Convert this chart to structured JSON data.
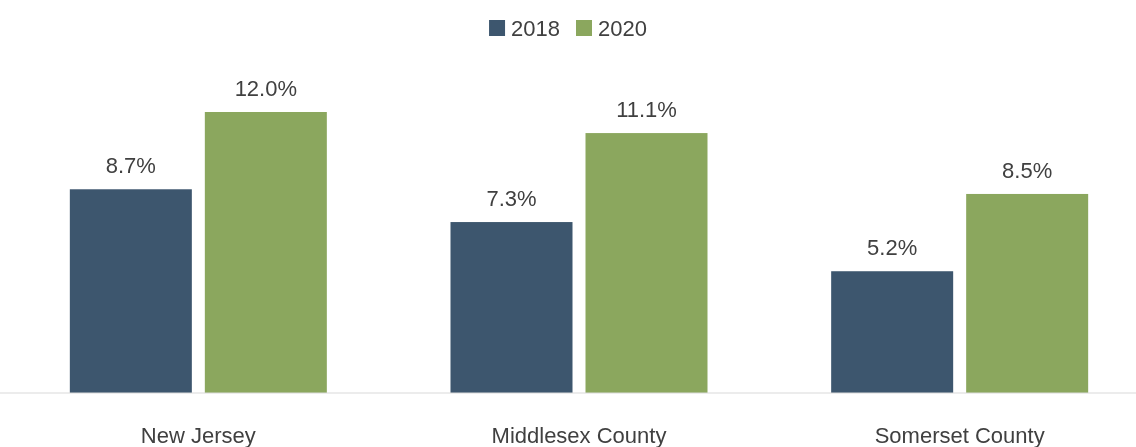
{
  "chart_data": {
    "type": "bar",
    "categories": [
      "New Jersey",
      "Middlesex County",
      "Somerset County"
    ],
    "series": [
      {
        "name": "2018",
        "color": "#3d566e",
        "values": [
          8.7,
          7.3,
          5.2
        ],
        "value_labels": [
          "8.7%",
          "7.3%",
          "5.2%"
        ]
      },
      {
        "name": "2020",
        "color": "#8ba75e",
        "values": [
          12.0,
          11.1,
          8.5
        ],
        "value_labels": [
          "12.0%",
          "11.1%",
          "8.5%"
        ]
      }
    ],
    "legend": "top"
  }
}
